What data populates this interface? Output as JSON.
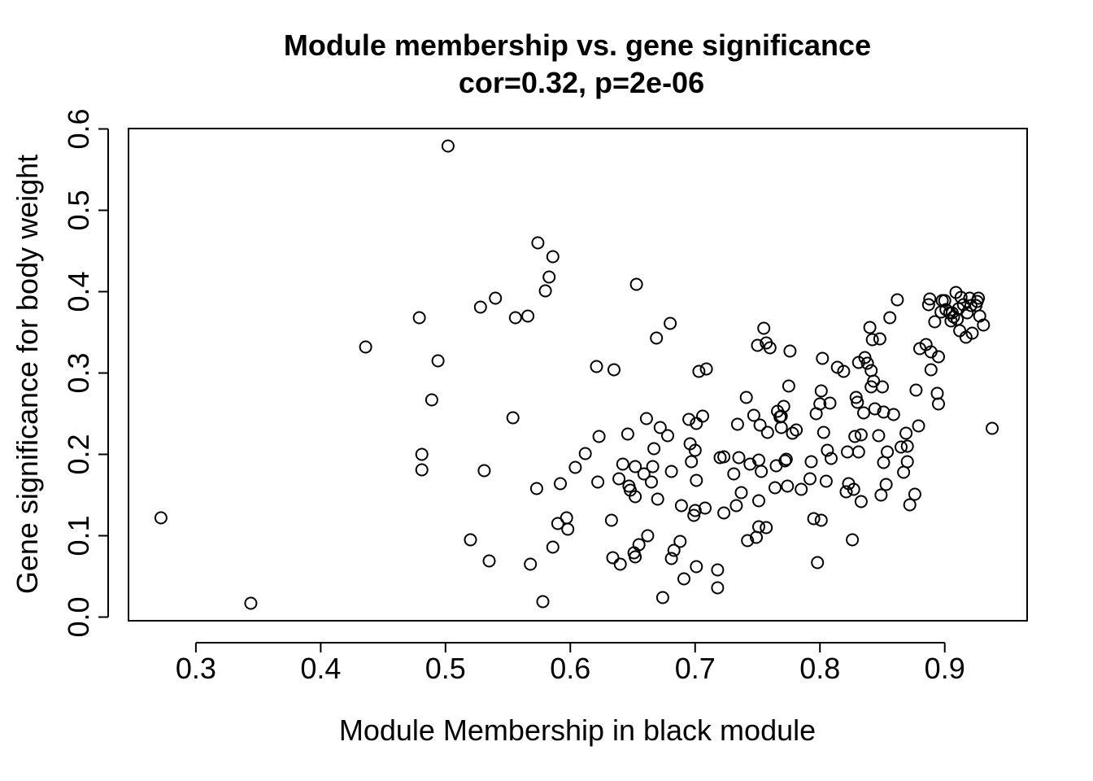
{
  "chart_data": {
    "type": "scatter",
    "title": "Module membership vs. gene significance",
    "subtitle": "cor=0.32, p=2e-06",
    "xlabel": "Module Membership in black module",
    "ylabel": "Gene significance for body weight",
    "xlim": [
      0.246,
      0.966
    ],
    "ylim": [
      -0.0045,
      0.6005
    ],
    "x_ticks": [
      0.3,
      0.4,
      0.5,
      0.6,
      0.7,
      0.8,
      0.9
    ],
    "x_tick_labels": [
      "0.3",
      "0.4",
      "0.5",
      "0.6",
      "0.7",
      "0.8",
      "0.9"
    ],
    "y_ticks": [
      0.0,
      0.1,
      0.2,
      0.3,
      0.4,
      0.5,
      0.6
    ],
    "y_tick_labels": [
      "0.0",
      "0.1",
      "0.2",
      "0.3",
      "0.4",
      "0.5",
      "0.6"
    ],
    "grid": false,
    "marker": "open-circle",
    "color": "#000000",
    "points": [
      [
        0.272,
        0.122
      ],
      [
        0.344,
        0.017
      ],
      [
        0.436,
        0.332
      ],
      [
        0.479,
        0.368
      ],
      [
        0.481,
        0.2
      ],
      [
        0.481,
        0.181
      ],
      [
        0.489,
        0.267
      ],
      [
        0.494,
        0.315
      ],
      [
        0.502,
        0.579
      ],
      [
        0.52,
        0.095
      ],
      [
        0.528,
        0.381
      ],
      [
        0.531,
        0.18
      ],
      [
        0.535,
        0.069
      ],
      [
        0.54,
        0.392
      ],
      [
        0.554,
        0.245
      ],
      [
        0.556,
        0.368
      ],
      [
        0.566,
        0.37
      ],
      [
        0.568,
        0.065
      ],
      [
        0.573,
        0.158
      ],
      [
        0.574,
        0.46
      ],
      [
        0.578,
        0.019
      ],
      [
        0.58,
        0.401
      ],
      [
        0.583,
        0.418
      ],
      [
        0.586,
        0.086
      ],
      [
        0.586,
        0.443
      ],
      [
        0.59,
        0.115
      ],
      [
        0.592,
        0.164
      ],
      [
        0.597,
        0.122
      ],
      [
        0.598,
        0.108
      ],
      [
        0.604,
        0.184
      ],
      [
        0.612,
        0.201
      ],
      [
        0.621,
        0.308
      ],
      [
        0.622,
        0.166
      ],
      [
        0.623,
        0.222
      ],
      [
        0.633,
        0.119
      ],
      [
        0.634,
        0.073
      ],
      [
        0.635,
        0.304
      ],
      [
        0.639,
        0.17
      ],
      [
        0.64,
        0.065
      ],
      [
        0.642,
        0.188
      ],
      [
        0.646,
        0.225
      ],
      [
        0.647,
        0.161
      ],
      [
        0.648,
        0.156
      ],
      [
        0.651,
        0.079
      ],
      [
        0.652,
        0.185
      ],
      [
        0.652,
        0.074
      ],
      [
        0.652,
        0.148
      ],
      [
        0.653,
        0.409
      ],
      [
        0.655,
        0.089
      ],
      [
        0.659,
        0.176
      ],
      [
        0.661,
        0.244
      ],
      [
        0.662,
        0.1
      ],
      [
        0.665,
        0.166
      ],
      [
        0.666,
        0.185
      ],
      [
        0.667,
        0.207
      ],
      [
        0.669,
        0.343
      ],
      [
        0.67,
        0.145
      ],
      [
        0.672,
        0.233
      ],
      [
        0.674,
        0.024
      ],
      [
        0.678,
        0.223
      ],
      [
        0.68,
        0.361
      ],
      [
        0.681,
        0.179
      ],
      [
        0.681,
        0.072
      ],
      [
        0.683,
        0.082
      ],
      [
        0.688,
        0.093
      ],
      [
        0.689,
        0.137
      ],
      [
        0.691,
        0.047
      ],
      [
        0.695,
        0.243
      ],
      [
        0.696,
        0.213
      ],
      [
        0.697,
        0.191
      ],
      [
        0.699,
        0.125
      ],
      [
        0.7,
        0.205
      ],
      [
        0.7,
        0.131
      ],
      [
        0.701,
        0.062
      ],
      [
        0.701,
        0.168
      ],
      [
        0.701,
        0.238
      ],
      [
        0.703,
        0.302
      ],
      [
        0.706,
        0.247
      ],
      [
        0.708,
        0.134
      ],
      [
        0.709,
        0.305
      ],
      [
        0.718,
        0.058
      ],
      [
        0.718,
        0.036
      ],
      [
        0.72,
        0.196
      ],
      [
        0.723,
        0.197
      ],
      [
        0.723,
        0.128
      ],
      [
        0.731,
        0.176
      ],
      [
        0.733,
        0.137
      ],
      [
        0.734,
        0.237
      ],
      [
        0.735,
        0.196
      ],
      [
        0.737,
        0.153
      ],
      [
        0.741,
        0.27
      ],
      [
        0.742,
        0.094
      ],
      [
        0.744,
        0.188
      ],
      [
        0.747,
        0.248
      ],
      [
        0.749,
        0.098
      ],
      [
        0.75,
        0.334
      ],
      [
        0.751,
        0.143
      ],
      [
        0.751,
        0.111
      ],
      [
        0.751,
        0.193
      ],
      [
        0.752,
        0.236
      ],
      [
        0.753,
        0.179
      ],
      [
        0.755,
        0.355
      ],
      [
        0.757,
        0.337
      ],
      [
        0.757,
        0.11
      ],
      [
        0.758,
        0.227
      ],
      [
        0.76,
        0.331
      ],
      [
        0.764,
        0.159
      ],
      [
        0.765,
        0.186
      ],
      [
        0.766,
        0.253
      ],
      [
        0.768,
        0.246
      ],
      [
        0.769,
        0.247
      ],
      [
        0.769,
        0.233
      ],
      [
        0.771,
        0.259
      ],
      [
        0.772,
        0.192
      ],
      [
        0.773,
        0.194
      ],
      [
        0.774,
        0.161
      ],
      [
        0.775,
        0.284
      ],
      [
        0.776,
        0.327
      ],
      [
        0.778,
        0.226
      ],
      [
        0.781,
        0.23
      ],
      [
        0.785,
        0.157
      ],
      [
        0.792,
        0.17
      ],
      [
        0.793,
        0.191
      ],
      [
        0.795,
        0.121
      ],
      [
        0.797,
        0.25
      ],
      [
        0.798,
        0.067
      ],
      [
        0.8,
        0.262
      ],
      [
        0.801,
        0.278
      ],
      [
        0.801,
        0.119
      ],
      [
        0.802,
        0.318
      ],
      [
        0.803,
        0.227
      ],
      [
        0.805,
        0.167
      ],
      [
        0.806,
        0.205
      ],
      [
        0.808,
        0.263
      ],
      [
        0.809,
        0.195
      ],
      [
        0.814,
        0.307
      ],
      [
        0.819,
        0.302
      ],
      [
        0.821,
        0.154
      ],
      [
        0.822,
        0.203
      ],
      [
        0.823,
        0.164
      ],
      [
        0.826,
        0.095
      ],
      [
        0.827,
        0.157
      ],
      [
        0.828,
        0.222
      ],
      [
        0.829,
        0.27
      ],
      [
        0.83,
        0.264
      ],
      [
        0.831,
        0.313
      ],
      [
        0.831,
        0.203
      ],
      [
        0.833,
        0.224
      ],
      [
        0.833,
        0.142
      ],
      [
        0.835,
        0.251
      ],
      [
        0.836,
        0.319
      ],
      [
        0.838,
        0.312
      ],
      [
        0.84,
        0.356
      ],
      [
        0.841,
        0.303
      ],
      [
        0.841,
        0.283
      ],
      [
        0.842,
        0.341
      ],
      [
        0.843,
        0.29
      ],
      [
        0.844,
        0.256
      ],
      [
        0.847,
        0.223
      ],
      [
        0.848,
        0.342
      ],
      [
        0.849,
        0.15
      ],
      [
        0.85,
        0.283
      ],
      [
        0.851,
        0.252
      ],
      [
        0.851,
        0.19
      ],
      [
        0.853,
        0.163
      ],
      [
        0.854,
        0.203
      ],
      [
        0.856,
        0.368
      ],
      [
        0.859,
        0.249
      ],
      [
        0.862,
        0.39
      ],
      [
        0.865,
        0.209
      ],
      [
        0.867,
        0.178
      ],
      [
        0.869,
        0.226
      ],
      [
        0.87,
        0.191
      ],
      [
        0.87,
        0.21
      ],
      [
        0.872,
        0.138
      ],
      [
        0.876,
        0.151
      ],
      [
        0.877,
        0.279
      ],
      [
        0.879,
        0.235
      ],
      [
        0.88,
        0.33
      ],
      [
        0.885,
        0.335
      ],
      [
        0.887,
        0.384
      ],
      [
        0.888,
        0.391
      ],
      [
        0.889,
        0.304
      ],
      [
        0.889,
        0.326
      ],
      [
        0.892,
        0.363
      ],
      [
        0.894,
        0.275
      ],
      [
        0.895,
        0.262
      ],
      [
        0.895,
        0.32
      ],
      [
        0.897,
        0.375
      ],
      [
        0.898,
        0.389
      ],
      [
        0.9,
        0.389
      ],
      [
        0.901,
        0.378
      ],
      [
        0.904,
        0.374
      ],
      [
        0.905,
        0.364
      ],
      [
        0.906,
        0.374
      ],
      [
        0.907,
        0.369
      ],
      [
        0.909,
        0.399
      ],
      [
        0.91,
        0.366
      ],
      [
        0.911,
        0.379
      ],
      [
        0.912,
        0.352
      ],
      [
        0.913,
        0.393
      ],
      [
        0.915,
        0.384
      ],
      [
        0.917,
        0.344
      ],
      [
        0.918,
        0.374
      ],
      [
        0.92,
        0.392
      ],
      [
        0.921,
        0.383
      ],
      [
        0.922,
        0.349
      ],
      [
        0.925,
        0.383
      ],
      [
        0.926,
        0.388
      ],
      [
        0.927,
        0.392
      ],
      [
        0.928,
        0.37
      ],
      [
        0.931,
        0.359
      ],
      [
        0.938,
        0.232
      ]
    ]
  }
}
